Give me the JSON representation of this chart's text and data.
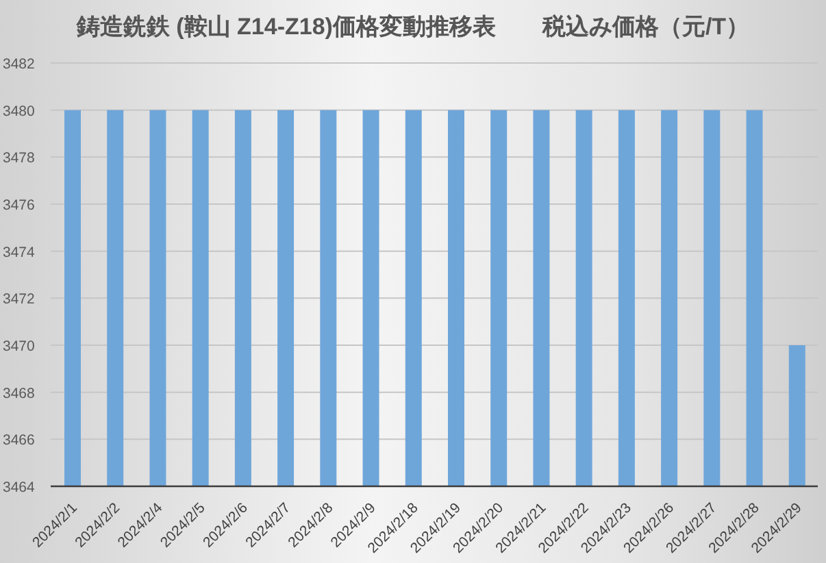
{
  "chart_data": {
    "type": "bar",
    "title": "鋳造銑鉄 (鞍山 Z14-Z18)価格変動推移表　　税込み価格（元/T）",
    "categories": [
      "2024/2/1",
      "2024/2/2",
      "2024/2/4",
      "2024/2/5",
      "2024/2/6",
      "2024/2/7",
      "2024/2/8",
      "2024/2/9",
      "2024/2/18",
      "2024/2/19",
      "2024/2/20",
      "2024/2/21",
      "2024/2/22",
      "2024/2/23",
      "2024/2/26",
      "2024/2/27",
      "2024/2/28",
      "2024/2/29"
    ],
    "values": [
      3480,
      3480,
      3480,
      3480,
      3480,
      3480,
      3480,
      3480,
      3480,
      3480,
      3480,
      3480,
      3480,
      3480,
      3480,
      3480,
      3480,
      3470
    ],
    "color": "#6fa6da",
    "ylim": [
      3464,
      3482
    ],
    "yticks": [
      3464,
      3466,
      3468,
      3470,
      3472,
      3474,
      3476,
      3478,
      3480,
      3482
    ],
    "grid": "y",
    "legend": false
  }
}
